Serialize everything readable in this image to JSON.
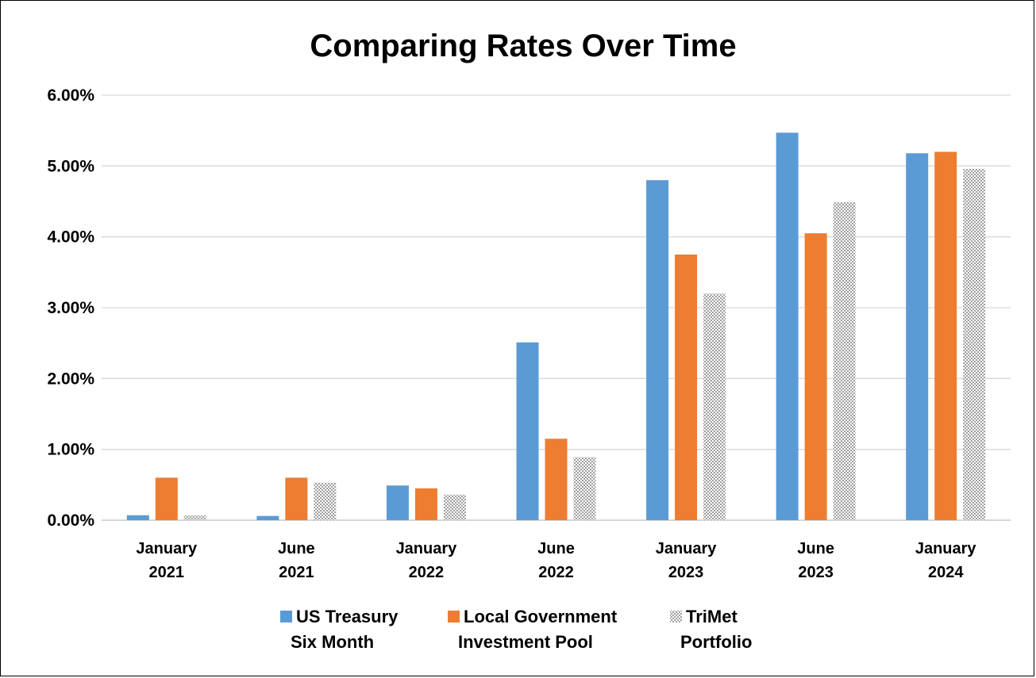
{
  "chart_data": {
    "type": "bar",
    "title": "Comparing Rates Over Time",
    "xlabel": "",
    "ylabel": "",
    "ylim": [
      0,
      6
    ],
    "yticks": [
      "0.00%",
      "1.00%",
      "2.00%",
      "3.00%",
      "4.00%",
      "5.00%",
      "6.00%"
    ],
    "grid": true,
    "legend_position": "bottom",
    "categories": [
      [
        "January",
        "2021"
      ],
      [
        "June",
        "2021"
      ],
      [
        "January",
        "2022"
      ],
      [
        "June",
        "2022"
      ],
      [
        "January",
        "2023"
      ],
      [
        "June",
        "2023"
      ],
      [
        "January",
        "2024"
      ]
    ],
    "series": [
      {
        "name": [
          "US Treasury",
          "Six Month"
        ],
        "color": "#5B9BD5",
        "pattern": "solid",
        "values": [
          0.07,
          0.06,
          0.49,
          2.51,
          4.8,
          5.47,
          5.18
        ]
      },
      {
        "name": [
          "Local Government",
          "Investment Pool"
        ],
        "color": "#ED7D31",
        "pattern": "solid",
        "values": [
          0.6,
          0.6,
          0.45,
          1.15,
          3.75,
          4.05,
          5.2
        ]
      },
      {
        "name": [
          "TriMet",
          "Portfolio"
        ],
        "color": "#A5A5A5",
        "pattern": "dotted",
        "values": [
          0.07,
          0.53,
          0.36,
          0.89,
          3.2,
          4.49,
          4.96
        ]
      }
    ]
  }
}
